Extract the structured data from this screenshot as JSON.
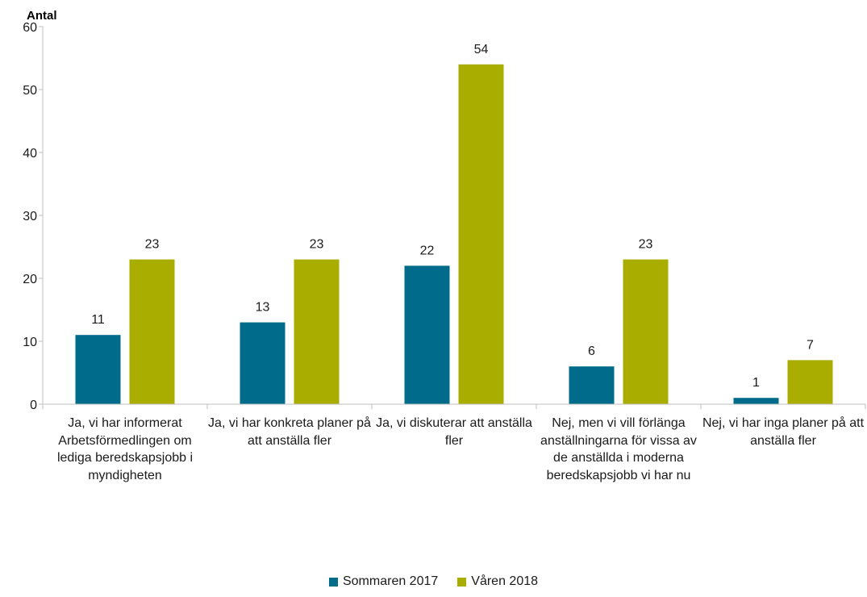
{
  "chart_data": {
    "type": "bar",
    "ylabel": "Antal",
    "ylim": [
      0,
      60
    ],
    "yticks": [
      "0",
      "10",
      "20",
      "30",
      "40",
      "50",
      "60"
    ],
    "categories": [
      "Ja, vi har informerat Arbetsförmedlingen om lediga beredskapsjobb i myndigheten",
      "Ja, vi har konkreta planer på att anställa fler",
      "Ja, vi diskuterar att anställa fler",
      "Nej, men vi vill förlänga anställningarna för vissa av de anställda i moderna beredskapsjobb vi har nu",
      "Nej, vi har inga planer på att anställa fler"
    ],
    "series": [
      {
        "name": "Sommaren 2017",
        "values": [
          11,
          13,
          22,
          6,
          1
        ],
        "color": "#006b8a"
      },
      {
        "name": "Våren 2018",
        "values": [
          23,
          23,
          54,
          23,
          7
        ],
        "color": "#a8ad00"
      }
    ],
    "grid": false,
    "legend_position": "bottom"
  }
}
